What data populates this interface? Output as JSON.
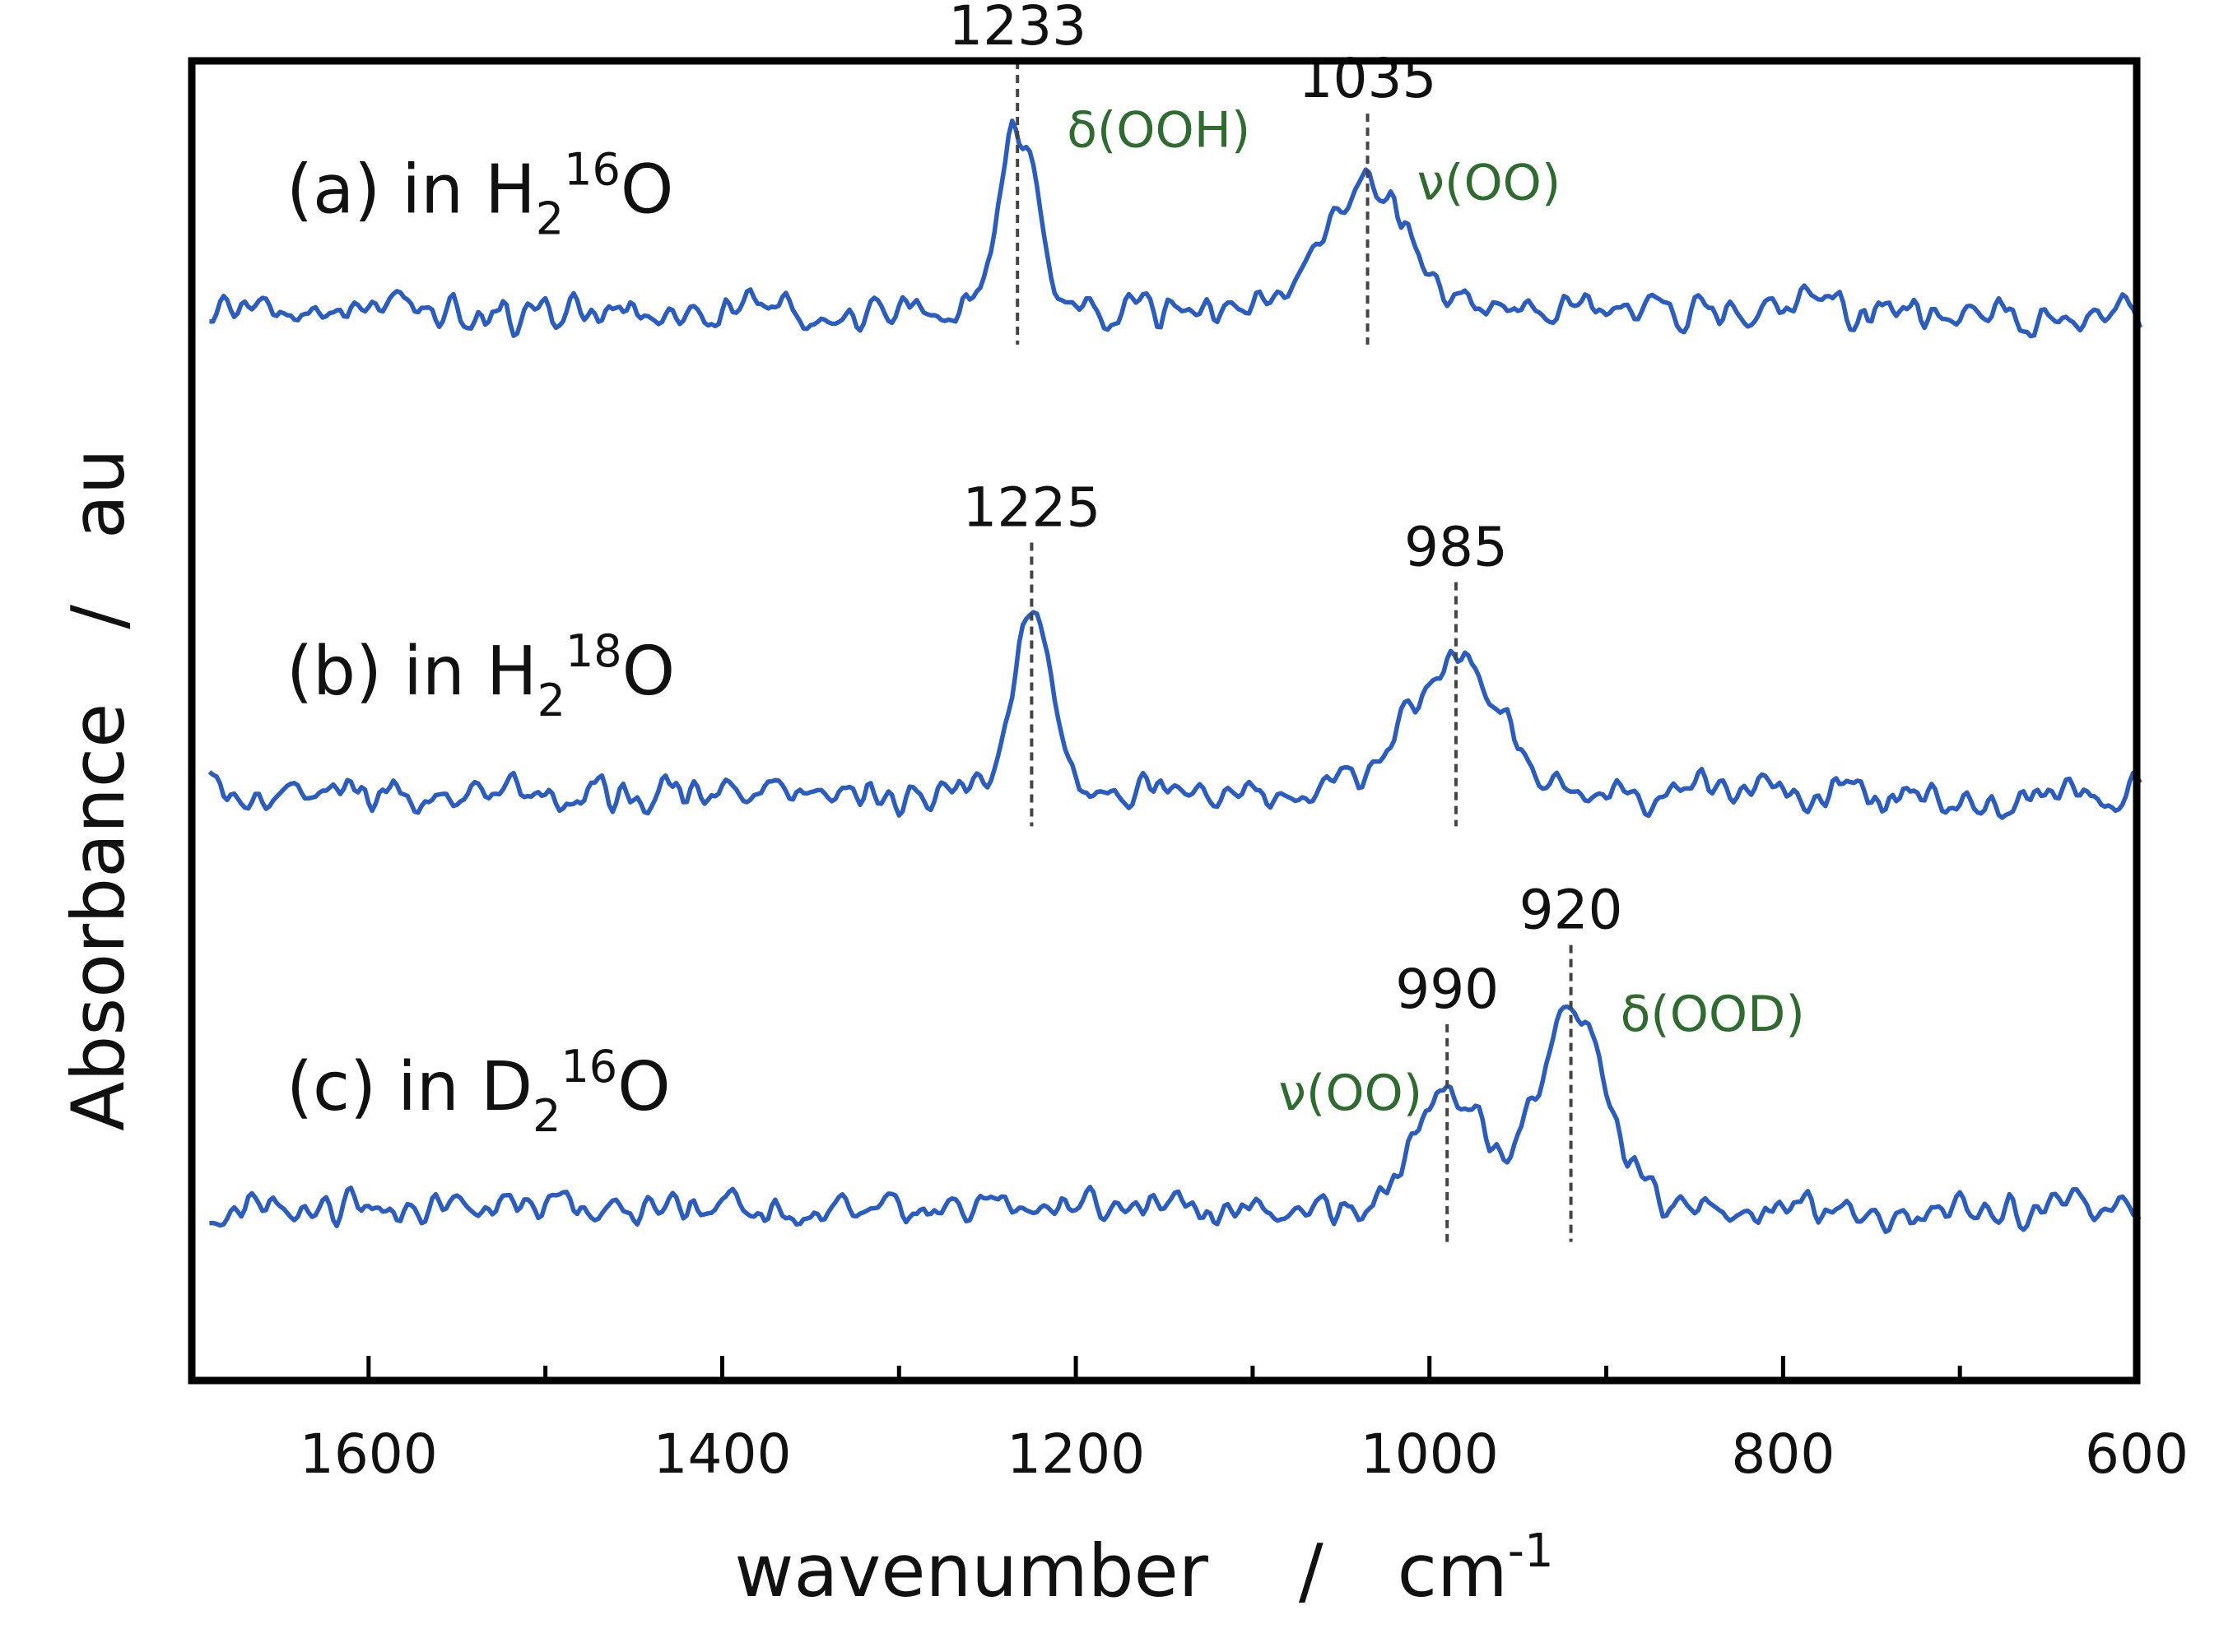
{
  "chart_data": {
    "type": "line",
    "title": "",
    "xlabel": "wavenumber",
    "xunit_base": "cm",
    "xunit_exp": "-1",
    "ylabel": "Absorbance",
    "yunit": "au",
    "label_separator": "/",
    "xlim": [
      1700,
      600
    ],
    "ylim": [
      0,
      1
    ],
    "x_ticks": [
      1600,
      1400,
      1200,
      1000,
      800,
      600
    ],
    "x_tick_labels": [
      "1600",
      "1400",
      "1200",
      "1000",
      "800",
      "600"
    ],
    "x_minor_ticks": [
      1700,
      1500,
      1300,
      1100,
      900,
      700
    ],
    "colors": {
      "trace": "#2a5dbf",
      "assignment": "#2e6b2e",
      "marker": "#444444",
      "text": "#111111",
      "axis": "#000000"
    },
    "series": [
      {
        "name": "(a) in H2 16O",
        "label": {
          "prefix": "(a) in H",
          "sub": "2",
          "sup": "16",
          "suffix": "O"
        },
        "offset": 0.81,
        "noise": 0.012,
        "seed": 11,
        "peaks": [
          {
            "x": 1233,
            "height": 0.135,
            "width": 11,
            "label": "1233",
            "assignment": "δ(OOH)",
            "assignment_side": "right"
          },
          {
            "x": 1035,
            "height": 0.095,
            "width": 25,
            "label": "1035",
            "assignment": "ν(OO)",
            "assignment_side": "right"
          }
        ]
      },
      {
        "name": "(b) in H2 18O",
        "label": {
          "prefix": "(b) in H",
          "sub": "2",
          "sup": "18",
          "suffix": "O"
        },
        "offset": 0.445,
        "noise": 0.011,
        "seed": 23,
        "peaks": [
          {
            "x": 1225,
            "height": 0.135,
            "width": 11,
            "label": "1225",
            "assignment": "",
            "assignment_side": "right"
          },
          {
            "x": 985,
            "height": 0.105,
            "width": 26,
            "label": "985",
            "assignment": "",
            "assignment_side": "right"
          }
        ]
      },
      {
        "name": "(c) in D2 16O",
        "label": {
          "prefix": "(c) in D",
          "sub": "2",
          "sup": "16",
          "suffix": "O"
        },
        "offset": 0.13,
        "noise": 0.011,
        "seed": 37,
        "peaks": [
          {
            "x": 990,
            "height": 0.085,
            "width": 20,
            "label": "990",
            "assignment": "ν(OO)",
            "assignment_side": "left"
          },
          {
            "x": 920,
            "height": 0.145,
            "width": 20,
            "label": "920",
            "assignment": "δ(OOD)",
            "assignment_side": "right"
          }
        ]
      }
    ]
  }
}
